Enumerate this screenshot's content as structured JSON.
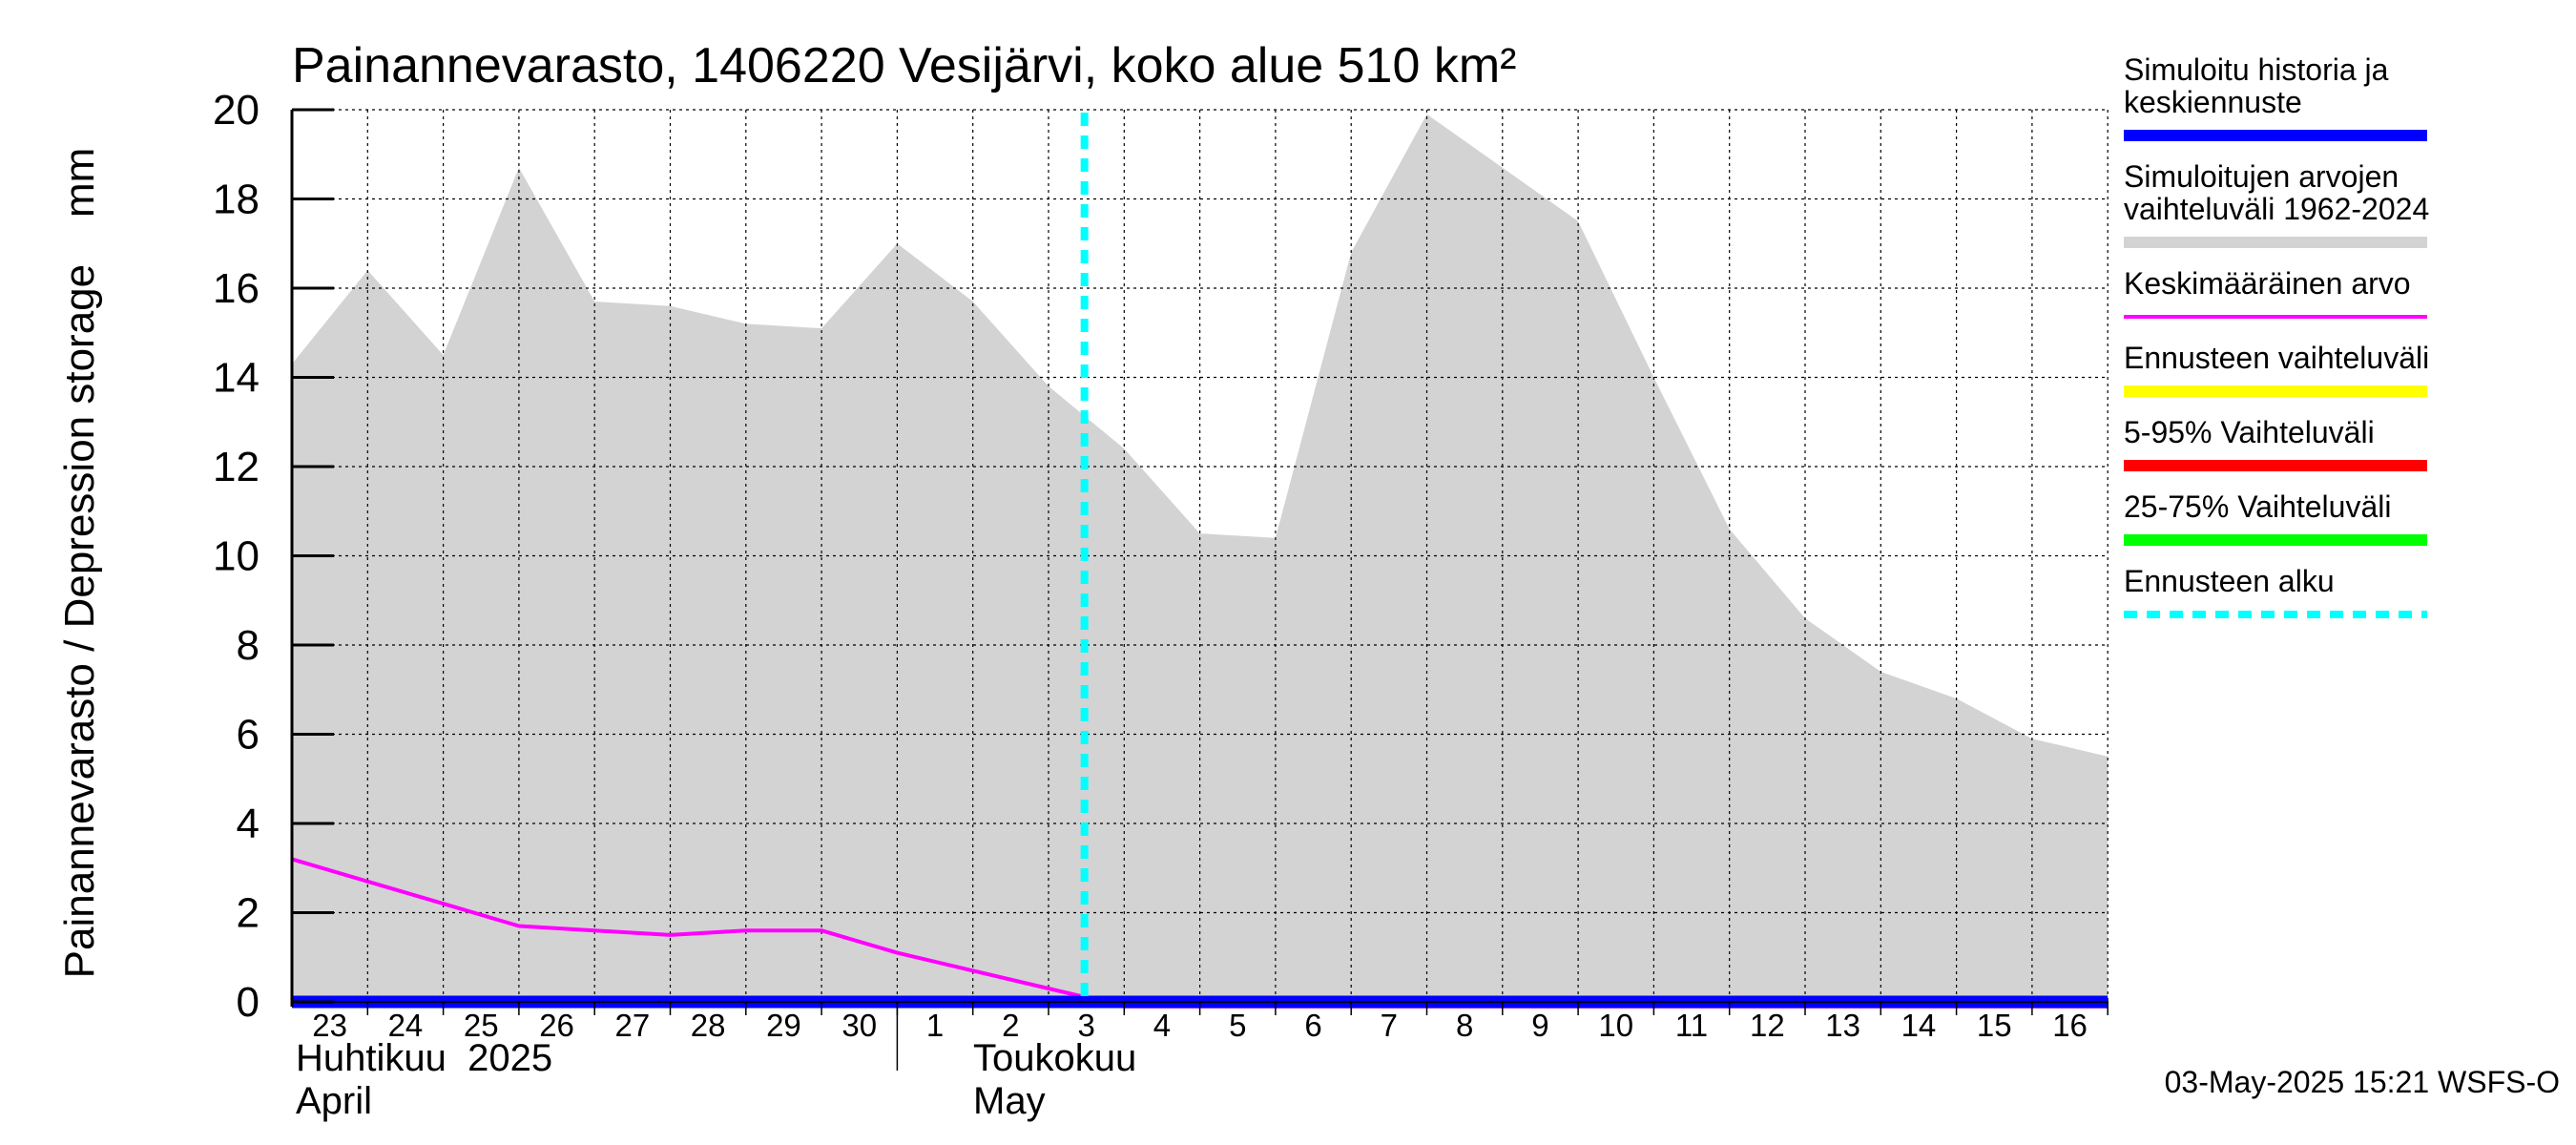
{
  "chart_data": {
    "type": "area",
    "title": "Painannevarasto, 1406220 Vesijärvi, koko alue 510 km²",
    "ylabel": "Painannevarasto / Depression storage    mm",
    "ylim": [
      0,
      20
    ],
    "yticks": [
      "0",
      "2",
      "4",
      "6",
      "8",
      "10",
      "12",
      "14",
      "16",
      "18",
      "20"
    ],
    "grid": true,
    "x_day_labels": [
      "23",
      "24",
      "25",
      "26",
      "27",
      "28",
      "29",
      "30",
      "1",
      "2",
      "3",
      "4",
      "5",
      "6",
      "7",
      "8",
      "9",
      "10",
      "11",
      "12",
      "13",
      "14",
      "15",
      "16"
    ],
    "month_labels": [
      {
        "line1": "Huhtikuu  2025",
        "line2": "April"
      },
      {
        "line1": "Toukokuu",
        "line2": "May"
      }
    ],
    "x": [
      "2025-04-23",
      "2025-04-24",
      "2025-04-25",
      "2025-04-26",
      "2025-04-27",
      "2025-04-28",
      "2025-04-29",
      "2025-04-30",
      "2025-05-01",
      "2025-05-02",
      "2025-05-03",
      "2025-05-04",
      "2025-05-05",
      "2025-05-06",
      "2025-05-07",
      "2025-05-08",
      "2025-05-09",
      "2025-05-10",
      "2025-05-11",
      "2025-05-12",
      "2025-05-13",
      "2025-05-14",
      "2025-05-15",
      "2025-05-16",
      "2025-05-17"
    ],
    "series": [
      {
        "name": "Simuloitujen arvojen vaihteluväli 1962-2024",
        "kind": "band",
        "color": "#d3d3d3",
        "upper": [
          14.3,
          16.4,
          14.5,
          18.7,
          15.7,
          15.6,
          15.2,
          15.1,
          17.0,
          15.7,
          13.8,
          12.4,
          10.5,
          10.4,
          16.8,
          19.9,
          18.7,
          17.5,
          14.0,
          10.6,
          8.6,
          7.4,
          6.8,
          5.9,
          5.5
        ],
        "lower": [
          0,
          0,
          0,
          0,
          0,
          0,
          0,
          0,
          0,
          0,
          0,
          0,
          0,
          0,
          0,
          0,
          0,
          0,
          0,
          0,
          0,
          0,
          0,
          0,
          0
        ]
      },
      {
        "name": "Keskimääräinen arvo",
        "kind": "line",
        "color": "#ff00ff",
        "values": [
          3.2,
          2.7,
          2.2,
          1.7,
          1.6,
          1.5,
          1.6,
          1.6,
          1.1,
          0.7,
          0.3,
          -0.1,
          -0.1,
          -0.1,
          -0.1,
          -0.1,
          -0.1,
          -0.1,
          -0.1,
          -0.1,
          -0.1,
          -0.1,
          -0.1,
          -0.1,
          -0.1
        ]
      },
      {
        "name": "Simuloitu historia ja keskiennuste",
        "kind": "line",
        "color": "#0000ff",
        "values": [
          0,
          0,
          0,
          0,
          0,
          0,
          0,
          0,
          0,
          0,
          0,
          0,
          0,
          0,
          0,
          0,
          0,
          0,
          0,
          0,
          0,
          0,
          0,
          0,
          0
        ]
      }
    ],
    "forecast_start": "2025-05-03T15:00",
    "legend": {
      "placement": "right",
      "items": [
        {
          "label_lines": [
            "Simuloitu historia ja",
            "keskiennuste"
          ],
          "color": "#0000ff",
          "style": "solid"
        },
        {
          "label_lines": [
            "Simuloitujen arvojen",
            "vaihteluväli 1962-2024"
          ],
          "color": "#d3d3d3",
          "style": "solid"
        },
        {
          "label_lines": [
            "Keskimääräinen arvo"
          ],
          "color": "#ff00ff",
          "style": "thin"
        },
        {
          "label_lines": [
            "Ennusteen vaihteluväli"
          ],
          "color": "#ffff00",
          "style": "solid"
        },
        {
          "label_lines": [
            "5-95% Vaihteluväli"
          ],
          "color": "#ff0000",
          "style": "solid"
        },
        {
          "label_lines": [
            "25-75% Vaihteluväli"
          ],
          "color": "#00ff00",
          "style": "solid"
        },
        {
          "label_lines": [
            "Ennusteen alku"
          ],
          "color": "#00ffff",
          "style": "dashed"
        }
      ]
    },
    "footer": "03-May-2025 15:21 WSFS-O"
  }
}
